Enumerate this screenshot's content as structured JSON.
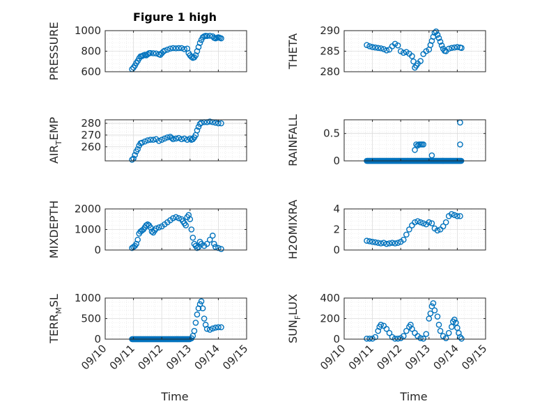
{
  "figure_title": "Figure 1 high",
  "chart_data": [
    {
      "type": "scatter",
      "ylabel": "PRESSURE",
      "ylabel_sub": "",
      "ylim": [
        600,
        1000
      ],
      "yticks": [
        600,
        800,
        1000
      ],
      "xlim": [
        "09/10",
        "09/15"
      ],
      "xticks": [
        "09/10",
        "09/11",
        "09/12",
        "09/13",
        "09/14",
        "09/15"
      ],
      "grid": true,
      "marker": "open-circle",
      "color": "#0072BD",
      "points": [
        [
          0.95,
          625
        ],
        [
          1.0,
          640
        ],
        [
          1.05,
          660
        ],
        [
          1.1,
          685
        ],
        [
          1.15,
          705
        ],
        [
          1.2,
          730
        ],
        [
          1.25,
          750
        ],
        [
          1.3,
          752
        ],
        [
          1.35,
          760
        ],
        [
          1.4,
          765
        ],
        [
          1.45,
          760
        ],
        [
          1.5,
          770
        ],
        [
          1.55,
          780
        ],
        [
          1.6,
          782
        ],
        [
          1.7,
          780
        ],
        [
          1.8,
          778
        ],
        [
          1.9,
          770
        ],
        [
          1.95,
          765
        ],
        [
          2.0,
          780
        ],
        [
          2.05,
          795
        ],
        [
          2.1,
          805
        ],
        [
          2.2,
          815
        ],
        [
          2.3,
          825
        ],
        [
          2.4,
          830
        ],
        [
          2.5,
          828
        ],
        [
          2.6,
          830
        ],
        [
          2.7,
          830
        ],
        [
          2.8,
          820
        ],
        [
          2.9,
          825
        ],
        [
          2.95,
          780
        ],
        [
          3.0,
          760
        ],
        [
          3.05,
          745
        ],
        [
          3.1,
          735
        ],
        [
          3.15,
          740
        ],
        [
          3.2,
          760
        ],
        [
          3.25,
          800
        ],
        [
          3.3,
          840
        ],
        [
          3.35,
          880
        ],
        [
          3.4,
          910
        ],
        [
          3.45,
          935
        ],
        [
          3.5,
          945
        ],
        [
          3.55,
          950
        ],
        [
          3.6,
          948
        ],
        [
          3.7,
          950
        ],
        [
          3.8,
          945
        ],
        [
          3.85,
          930
        ],
        [
          3.9,
          925
        ],
        [
          3.95,
          930
        ],
        [
          4.0,
          935
        ],
        [
          4.05,
          930
        ],
        [
          4.1,
          925
        ]
      ]
    },
    {
      "type": "scatter",
      "ylabel": "THETA",
      "ylabel_sub": "",
      "ylim": [
        280,
        290
      ],
      "yticks": [
        280,
        285,
        290
      ],
      "xlim": [
        "09/10",
        "09/15"
      ],
      "xticks": [
        "09/10",
        "09/11",
        "09/12",
        "09/13",
        "09/14",
        "09/15"
      ],
      "grid": true,
      "marker": "open-circle",
      "color": "#0072BD",
      "points": [
        [
          0.8,
          286.5
        ],
        [
          0.9,
          286.2
        ],
        [
          1.0,
          286.0
        ],
        [
          1.1,
          285.9
        ],
        [
          1.2,
          285.8
        ],
        [
          1.3,
          285.7
        ],
        [
          1.4,
          285.5
        ],
        [
          1.5,
          285.2
        ],
        [
          1.6,
          285.4
        ],
        [
          1.7,
          286.2
        ],
        [
          1.8,
          286.8
        ],
        [
          1.9,
          286.4
        ],
        [
          2.0,
          285.0
        ],
        [
          2.1,
          284.6
        ],
        [
          2.2,
          284.8
        ],
        [
          2.3,
          284.4
        ],
        [
          2.4,
          283.8
        ],
        [
          2.45,
          282.5
        ],
        [
          2.5,
          281.0
        ],
        [
          2.55,
          281.5
        ],
        [
          2.6,
          282.0
        ],
        [
          2.7,
          282.6
        ],
        [
          2.8,
          284.3
        ],
        [
          2.9,
          285.0
        ],
        [
          3.0,
          285.4
        ],
        [
          3.05,
          286.5
        ],
        [
          3.1,
          287.5
        ],
        [
          3.15,
          288.5
        ],
        [
          3.2,
          289.5
        ],
        [
          3.25,
          289.8
        ],
        [
          3.3,
          289.0
        ],
        [
          3.35,
          288.2
        ],
        [
          3.4,
          287.3
        ],
        [
          3.45,
          286.4
        ],
        [
          3.5,
          285.6
        ],
        [
          3.55,
          285.1
        ],
        [
          3.6,
          285.0
        ],
        [
          3.7,
          285.6
        ],
        [
          3.8,
          285.8
        ],
        [
          3.9,
          285.9
        ],
        [
          4.0,
          286.0
        ],
        [
          4.1,
          285.9
        ],
        [
          4.15,
          285.8
        ]
      ]
    },
    {
      "type": "scatter",
      "ylabel": "AIR",
      "ylabel_sub": "T",
      "ylabel_rest": "EMP",
      "ylim": [
        248,
        283
      ],
      "yticks": [
        260,
        270,
        280
      ],
      "xlim": [
        "09/10",
        "09/15"
      ],
      "xticks": [
        "09/10",
        "09/11",
        "09/12",
        "09/13",
        "09/14",
        "09/15"
      ],
      "grid": true,
      "marker": "open-circle",
      "color": "#0072BD",
      "points": [
        [
          0.95,
          249
        ],
        [
          1.0,
          250
        ],
        [
          1.05,
          253
        ],
        [
          1.1,
          256
        ],
        [
          1.15,
          258
        ],
        [
          1.2,
          261
        ],
        [
          1.25,
          263
        ],
        [
          1.3,
          263.5
        ],
        [
          1.4,
          264.5
        ],
        [
          1.5,
          265.5
        ],
        [
          1.6,
          266
        ],
        [
          1.7,
          266
        ],
        [
          1.8,
          266.5
        ],
        [
          1.9,
          265
        ],
        [
          2.0,
          266
        ],
        [
          2.1,
          267
        ],
        [
          2.2,
          268
        ],
        [
          2.3,
          268.5
        ],
        [
          2.35,
          267.5
        ],
        [
          2.4,
          266.5
        ],
        [
          2.5,
          267
        ],
        [
          2.6,
          267.5
        ],
        [
          2.7,
          266.5
        ],
        [
          2.8,
          267
        ],
        [
          2.9,
          266
        ],
        [
          3.0,
          267
        ],
        [
          3.05,
          266
        ],
        [
          3.1,
          266.5
        ],
        [
          3.15,
          268
        ],
        [
          3.2,
          270
        ],
        [
          3.25,
          274
        ],
        [
          3.3,
          277
        ],
        [
          3.35,
          279.5
        ],
        [
          3.4,
          280.5
        ],
        [
          3.5,
          281
        ],
        [
          3.6,
          281
        ],
        [
          3.7,
          281.5
        ],
        [
          3.8,
          281
        ],
        [
          3.9,
          280.5
        ],
        [
          4.0,
          280
        ],
        [
          4.1,
          280
        ]
      ]
    },
    {
      "type": "scatter",
      "ylabel": "RAINFALL",
      "ylabel_sub": "",
      "ylim": [
        0,
        0.75
      ],
      "yticks": [
        0,
        0.5
      ],
      "xlim": [
        "09/10",
        "09/15"
      ],
      "xticks": [
        "09/10",
        "09/11",
        "09/12",
        "09/13",
        "09/14",
        "09/15"
      ],
      "grid": true,
      "marker": "open-circle",
      "color": "#0072BD",
      "zero_run": [
        0.8,
        4.15,
        0.02
      ],
      "points": [
        [
          2.5,
          0.2
        ],
        [
          2.55,
          0.3
        ],
        [
          2.6,
          0.28
        ],
        [
          2.65,
          0.3
        ],
        [
          2.7,
          0.3
        ],
        [
          2.75,
          0.3
        ],
        [
          2.8,
          0.3
        ],
        [
          3.1,
          0.1
        ],
        [
          4.1,
          0.7
        ],
        [
          4.1,
          0.3
        ]
      ]
    },
    {
      "type": "scatter",
      "ylabel": "MIXDEPTH",
      "ylabel_sub": "",
      "ylim": [
        0,
        2000
      ],
      "yticks": [
        0,
        1000,
        2000
      ],
      "xlim": [
        "09/10",
        "09/15"
      ],
      "xticks": [
        "09/10",
        "09/11",
        "09/12",
        "09/13",
        "09/14",
        "09/15"
      ],
      "grid": true,
      "marker": "open-circle",
      "color": "#0072BD",
      "points": [
        [
          0.95,
          100
        ],
        [
          1.0,
          150
        ],
        [
          1.05,
          200
        ],
        [
          1.1,
          300
        ],
        [
          1.15,
          500
        ],
        [
          1.2,
          800
        ],
        [
          1.25,
          900
        ],
        [
          1.3,
          950
        ],
        [
          1.35,
          1000
        ],
        [
          1.4,
          1100
        ],
        [
          1.45,
          1200
        ],
        [
          1.5,
          1250
        ],
        [
          1.55,
          1200
        ],
        [
          1.6,
          1100
        ],
        [
          1.65,
          900
        ],
        [
          1.7,
          850
        ],
        [
          1.75,
          950
        ],
        [
          1.8,
          1050
        ],
        [
          1.9,
          1100
        ],
        [
          2.0,
          1150
        ],
        [
          2.1,
          1250
        ],
        [
          2.2,
          1350
        ],
        [
          2.3,
          1450
        ],
        [
          2.4,
          1550
        ],
        [
          2.5,
          1600
        ],
        [
          2.6,
          1550
        ],
        [
          2.7,
          1500
        ],
        [
          2.75,
          1400
        ],
        [
          2.8,
          1300
        ],
        [
          2.85,
          1200
        ],
        [
          2.9,
          1600
        ],
        [
          2.95,
          1700
        ],
        [
          3.0,
          1500
        ],
        [
          3.05,
          1000
        ],
        [
          3.1,
          600
        ],
        [
          3.15,
          300
        ],
        [
          3.2,
          200
        ],
        [
          3.25,
          100
        ],
        [
          3.3,
          150
        ],
        [
          3.35,
          400
        ],
        [
          3.4,
          300
        ],
        [
          3.5,
          200
        ],
        [
          3.6,
          300
        ],
        [
          3.7,
          500
        ],
        [
          3.8,
          700
        ],
        [
          3.85,
          300
        ],
        [
          3.9,
          150
        ],
        [
          4.0,
          100
        ],
        [
          4.1,
          50
        ]
      ]
    },
    {
      "type": "scatter",
      "ylabel": "H2OMIXRA",
      "ylabel_sub": "",
      "ylim": [
        0,
        4
      ],
      "yticks": [
        0,
        2,
        4
      ],
      "xlim": [
        "09/10",
        "09/15"
      ],
      "xticks": [
        "09/10",
        "09/11",
        "09/12",
        "09/13",
        "09/14",
        "09/15"
      ],
      "grid": true,
      "marker": "open-circle",
      "color": "#0072BD",
      "points": [
        [
          0.8,
          0.9
        ],
        [
          0.9,
          0.85
        ],
        [
          1.0,
          0.8
        ],
        [
          1.1,
          0.75
        ],
        [
          1.2,
          0.7
        ],
        [
          1.3,
          0.65
        ],
        [
          1.4,
          0.7
        ],
        [
          1.5,
          0.6
        ],
        [
          1.6,
          0.65
        ],
        [
          1.7,
          0.7
        ],
        [
          1.8,
          0.65
        ],
        [
          1.9,
          0.7
        ],
        [
          2.0,
          0.8
        ],
        [
          2.1,
          1.0
        ],
        [
          2.2,
          1.5
        ],
        [
          2.3,
          2.0
        ],
        [
          2.4,
          2.4
        ],
        [
          2.5,
          2.7
        ],
        [
          2.6,
          2.8
        ],
        [
          2.7,
          2.7
        ],
        [
          2.8,
          2.6
        ],
        [
          2.9,
          2.5
        ],
        [
          3.0,
          2.7
        ],
        [
          3.1,
          2.6
        ],
        [
          3.2,
          2.1
        ],
        [
          3.3,
          1.9
        ],
        [
          3.4,
          2.0
        ],
        [
          3.5,
          2.3
        ],
        [
          3.6,
          2.7
        ],
        [
          3.7,
          3.3
        ],
        [
          3.8,
          3.5
        ],
        [
          3.9,
          3.4
        ],
        [
          4.0,
          3.3
        ],
        [
          4.1,
          3.3
        ]
      ]
    },
    {
      "type": "scatter",
      "ylabel": "TERR",
      "ylabel_sub": "M",
      "ylabel_rest": "SL",
      "ylim": [
        0,
        1000
      ],
      "yticks": [
        0,
        500,
        1000
      ],
      "xlim": [
        "09/10",
        "09/15"
      ],
      "xticks": [
        "09/10",
        "09/11",
        "09/12",
        "09/13",
        "09/14",
        "09/15"
      ],
      "grid": true,
      "marker": "open-circle",
      "color": "#0072BD",
      "zero_run": [
        0.95,
        3.0,
        0.02
      ],
      "points": [
        [
          3.05,
          20
        ],
        [
          3.1,
          80
        ],
        [
          3.15,
          200
        ],
        [
          3.2,
          400
        ],
        [
          3.25,
          600
        ],
        [
          3.3,
          750
        ],
        [
          3.35,
          850
        ],
        [
          3.4,
          920
        ],
        [
          3.45,
          750
        ],
        [
          3.5,
          500
        ],
        [
          3.55,
          350
        ],
        [
          3.6,
          250
        ],
        [
          3.7,
          230
        ],
        [
          3.8,
          260
        ],
        [
          3.9,
          280
        ],
        [
          4.0,
          290
        ],
        [
          4.1,
          290
        ]
      ]
    },
    {
      "type": "scatter",
      "ylabel": "SUN",
      "ylabel_sub": "F",
      "ylabel_rest": "LUX",
      "ylim": [
        0,
        400
      ],
      "yticks": [
        0,
        200,
        400
      ],
      "xlim": [
        "09/10",
        "09/15"
      ],
      "xticks": [
        "09/10",
        "09/11",
        "09/12",
        "09/13",
        "09/14",
        "09/15"
      ],
      "grid": true,
      "marker": "open-circle",
      "color": "#0072BD",
      "points": [
        [
          0.8,
          5
        ],
        [
          0.9,
          5
        ],
        [
          1.0,
          5
        ],
        [
          1.1,
          20
        ],
        [
          1.2,
          80
        ],
        [
          1.25,
          120
        ],
        [
          1.3,
          140
        ],
        [
          1.4,
          130
        ],
        [
          1.5,
          100
        ],
        [
          1.6,
          60
        ],
        [
          1.7,
          20
        ],
        [
          1.8,
          5
        ],
        [
          1.9,
          5
        ],
        [
          2.0,
          10
        ],
        [
          2.1,
          30
        ],
        [
          2.2,
          80
        ],
        [
          2.3,
          120
        ],
        [
          2.35,
          140
        ],
        [
          2.4,
          100
        ],
        [
          2.5,
          60
        ],
        [
          2.6,
          30
        ],
        [
          2.7,
          10
        ],
        [
          2.8,
          5
        ],
        [
          2.9,
          50
        ],
        [
          3.0,
          200
        ],
        [
          3.05,
          250
        ],
        [
          3.1,
          320
        ],
        [
          3.15,
          350
        ],
        [
          3.2,
          280
        ],
        [
          3.3,
          220
        ],
        [
          3.35,
          140
        ],
        [
          3.4,
          80
        ],
        [
          3.5,
          30
        ],
        [
          3.6,
          10
        ],
        [
          3.7,
          60
        ],
        [
          3.8,
          120
        ],
        [
          3.85,
          170
        ],
        [
          3.9,
          190
        ],
        [
          3.95,
          160
        ],
        [
          4.0,
          110
        ],
        [
          4.05,
          60
        ],
        [
          4.1,
          20
        ],
        [
          4.15,
          5
        ]
      ]
    }
  ],
  "xlabel_left": "Time",
  "xlabel_right": "Time"
}
